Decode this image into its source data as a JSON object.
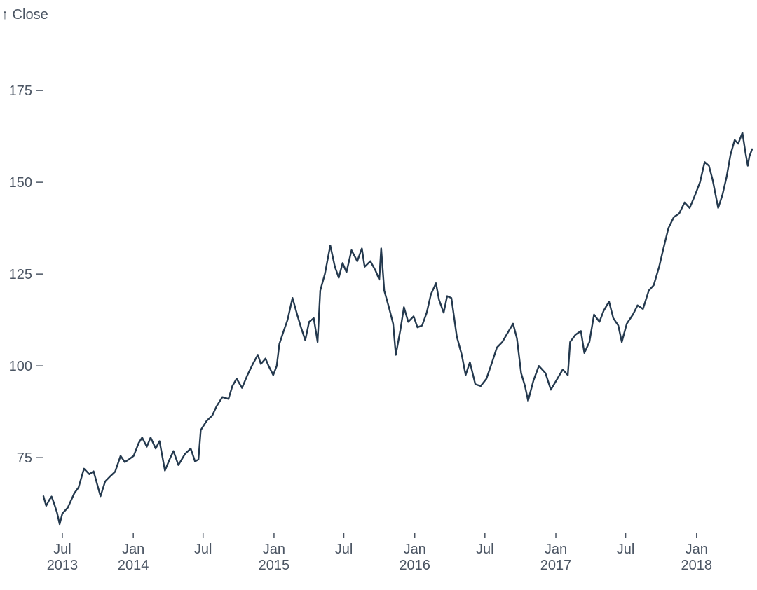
{
  "chart_data": {
    "type": "line",
    "ylabel": "↑ Close",
    "ylim": [
      55,
      192
    ],
    "xlim": [
      "2013-05-13",
      "2018-05-25"
    ],
    "grid": false,
    "y_ticks": [
      75,
      100,
      125,
      150,
      175
    ],
    "x_ticks": [
      {
        "date": "2013-07-01",
        "label": "Jul",
        "year": "2013"
      },
      {
        "date": "2014-01-01",
        "label": "Jan",
        "year": "2014"
      },
      {
        "date": "2014-07-01",
        "label": "Jul",
        "year": ""
      },
      {
        "date": "2015-01-01",
        "label": "Jan",
        "year": "2015"
      },
      {
        "date": "2015-07-01",
        "label": "Jul",
        "year": ""
      },
      {
        "date": "2016-01-01",
        "label": "Jan",
        "year": "2016"
      },
      {
        "date": "2016-07-01",
        "label": "Jul",
        "year": ""
      },
      {
        "date": "2017-01-01",
        "label": "Jan",
        "year": "2017"
      },
      {
        "date": "2017-07-01",
        "label": "Jul",
        "year": ""
      },
      {
        "date": "2018-01-01",
        "label": "Jan",
        "year": "2018"
      }
    ],
    "colors": {
      "line": "#24394e",
      "text": "#4b5563",
      "axis": "#4b5563"
    },
    "series": [
      {
        "points": [
          [
            "2013-05-13",
            64.5
          ],
          [
            "2013-05-20",
            61.9
          ],
          [
            "2013-05-28",
            63.5
          ],
          [
            "2013-06-03",
            64.4
          ],
          [
            "2013-06-10",
            62.4
          ],
          [
            "2013-06-17",
            60.1
          ],
          [
            "2013-06-24",
            56.9
          ],
          [
            "2013-07-01",
            59.8
          ],
          [
            "2013-07-15",
            61.4
          ],
          [
            "2013-08-01",
            65.3
          ],
          [
            "2013-08-12",
            66.9
          ],
          [
            "2013-08-26",
            72.0
          ],
          [
            "2013-09-09",
            70.5
          ],
          [
            "2013-09-20",
            71.3
          ],
          [
            "2013-10-01",
            67.1
          ],
          [
            "2013-10-08",
            64.5
          ],
          [
            "2013-10-20",
            68.5
          ],
          [
            "2013-11-01",
            69.8
          ],
          [
            "2013-11-15",
            71.2
          ],
          [
            "2013-11-29",
            75.5
          ],
          [
            "2013-12-10",
            73.8
          ],
          [
            "2013-12-20",
            74.5
          ],
          [
            "2014-01-02",
            75.5
          ],
          [
            "2014-01-15",
            79.0
          ],
          [
            "2014-01-24",
            80.5
          ],
          [
            "2014-02-05",
            78.0
          ],
          [
            "2014-02-15",
            80.5
          ],
          [
            "2014-02-28",
            77.5
          ],
          [
            "2014-03-10",
            79.5
          ],
          [
            "2014-03-24",
            71.5
          ],
          [
            "2014-04-05",
            74.5
          ],
          [
            "2014-04-15",
            76.8
          ],
          [
            "2014-04-28",
            73.0
          ],
          [
            "2014-05-15",
            76.0
          ],
          [
            "2014-05-30",
            77.5
          ],
          [
            "2014-06-10",
            74.0
          ],
          [
            "2014-06-19",
            74.5
          ],
          [
            "2014-06-25",
            82.5
          ],
          [
            "2014-07-10",
            85.0
          ],
          [
            "2014-07-25",
            86.5
          ],
          [
            "2014-08-05",
            89.0
          ],
          [
            "2014-08-20",
            91.5
          ],
          [
            "2014-09-05",
            91.0
          ],
          [
            "2014-09-15",
            94.5
          ],
          [
            "2014-09-26",
            96.5
          ],
          [
            "2014-10-10",
            94.0
          ],
          [
            "2014-10-24",
            97.5
          ],
          [
            "2014-11-07",
            100.5
          ],
          [
            "2014-11-20",
            103.0
          ],
          [
            "2014-11-28",
            100.5
          ],
          [
            "2014-12-10",
            102.0
          ],
          [
            "2014-12-18",
            100.0
          ],
          [
            "2014-12-30",
            97.5
          ],
          [
            "2015-01-08",
            100.0
          ],
          [
            "2015-01-15",
            106.0
          ],
          [
            "2015-01-26",
            109.5
          ],
          [
            "2015-02-05",
            112.5
          ],
          [
            "2015-02-18",
            118.5
          ],
          [
            "2015-03-02",
            114.0
          ],
          [
            "2015-03-12",
            110.5
          ],
          [
            "2015-03-23",
            107.0
          ],
          [
            "2015-04-02",
            112.0
          ],
          [
            "2015-04-14",
            113.0
          ],
          [
            "2015-04-24",
            106.5
          ],
          [
            "2015-05-01",
            120.5
          ],
          [
            "2015-05-13",
            125.0
          ],
          [
            "2015-05-27",
            132.8
          ],
          [
            "2015-06-08",
            127.0
          ],
          [
            "2015-06-18",
            124.0
          ],
          [
            "2015-06-28",
            128.0
          ],
          [
            "2015-07-08",
            125.5
          ],
          [
            "2015-07-21",
            131.5
          ],
          [
            "2015-08-05",
            128.5
          ],
          [
            "2015-08-17",
            132.0
          ],
          [
            "2015-08-24",
            127.0
          ],
          [
            "2015-09-08",
            128.5
          ],
          [
            "2015-09-21",
            126.0
          ],
          [
            "2015-10-01",
            123.5
          ],
          [
            "2015-10-06",
            132.0
          ],
          [
            "2015-10-14",
            120.5
          ],
          [
            "2015-10-26",
            116.0
          ],
          [
            "2015-11-06",
            111.5
          ],
          [
            "2015-11-13",
            103.0
          ],
          [
            "2015-11-25",
            110.0
          ],
          [
            "2015-12-04",
            116.0
          ],
          [
            "2015-12-15",
            112.0
          ],
          [
            "2015-12-29",
            113.5
          ],
          [
            "2016-01-08",
            110.5
          ],
          [
            "2016-01-20",
            111.0
          ],
          [
            "2016-02-01",
            114.5
          ],
          [
            "2016-02-12",
            119.5
          ],
          [
            "2016-02-25",
            122.5
          ],
          [
            "2016-03-04",
            118.0
          ],
          [
            "2016-03-16",
            114.5
          ],
          [
            "2016-03-25",
            119.0
          ],
          [
            "2016-04-05",
            118.5
          ],
          [
            "2016-04-19",
            108.0
          ],
          [
            "2016-05-02",
            103.0
          ],
          [
            "2016-05-12",
            97.5
          ],
          [
            "2016-05-23",
            101.0
          ],
          [
            "2016-06-06",
            95.0
          ],
          [
            "2016-06-20",
            94.5
          ],
          [
            "2016-07-05",
            96.5
          ],
          [
            "2016-07-18",
            100.5
          ],
          [
            "2016-08-01",
            105.0
          ],
          [
            "2016-08-15",
            106.5
          ],
          [
            "2016-08-29",
            109.0
          ],
          [
            "2016-09-12",
            111.5
          ],
          [
            "2016-09-22",
            107.5
          ],
          [
            "2016-10-03",
            98.0
          ],
          [
            "2016-10-13",
            94.5
          ],
          [
            "2016-10-21",
            90.5
          ],
          [
            "2016-11-04",
            96.0
          ],
          [
            "2016-11-18",
            100.0
          ],
          [
            "2016-12-05",
            98.0
          ],
          [
            "2016-12-19",
            93.5
          ],
          [
            "2017-01-05",
            96.5
          ],
          [
            "2017-01-19",
            99.0
          ],
          [
            "2017-02-01",
            97.5
          ],
          [
            "2017-02-07",
            106.5
          ],
          [
            "2017-02-21",
            108.5
          ],
          [
            "2017-03-07",
            109.5
          ],
          [
            "2017-03-16",
            103.5
          ],
          [
            "2017-03-29",
            106.5
          ],
          [
            "2017-04-10",
            114.0
          ],
          [
            "2017-04-24",
            112.0
          ],
          [
            "2017-05-05",
            115.0
          ],
          [
            "2017-05-19",
            117.5
          ],
          [
            "2017-05-30",
            113.0
          ],
          [
            "2017-06-12",
            111.0
          ],
          [
            "2017-06-21",
            106.5
          ],
          [
            "2017-07-04",
            111.5
          ],
          [
            "2017-07-20",
            114.0
          ],
          [
            "2017-08-01",
            116.5
          ],
          [
            "2017-08-15",
            115.5
          ],
          [
            "2017-08-30",
            120.5
          ],
          [
            "2017-09-12",
            122.0
          ],
          [
            "2017-09-26",
            127.0
          ],
          [
            "2017-10-06",
            131.5
          ],
          [
            "2017-10-20",
            137.5
          ],
          [
            "2017-11-03",
            140.5
          ],
          [
            "2017-11-17",
            141.5
          ],
          [
            "2017-12-01",
            144.5
          ],
          [
            "2017-12-14",
            143.0
          ],
          [
            "2017-12-28",
            146.5
          ],
          [
            "2018-01-10",
            150.0
          ],
          [
            "2018-01-22",
            155.5
          ],
          [
            "2018-02-02",
            154.5
          ],
          [
            "2018-02-12",
            150.5
          ],
          [
            "2018-02-26",
            143.0
          ],
          [
            "2018-03-09",
            146.5
          ],
          [
            "2018-03-20",
            151.5
          ],
          [
            "2018-03-30",
            157.5
          ],
          [
            "2018-04-10",
            161.5
          ],
          [
            "2018-04-19",
            160.5
          ],
          [
            "2018-04-30",
            163.5
          ],
          [
            "2018-05-08",
            158.0
          ],
          [
            "2018-05-14",
            154.5
          ],
          [
            "2018-05-18",
            157.0
          ],
          [
            "2018-05-25",
            159.0
          ]
        ]
      }
    ]
  }
}
